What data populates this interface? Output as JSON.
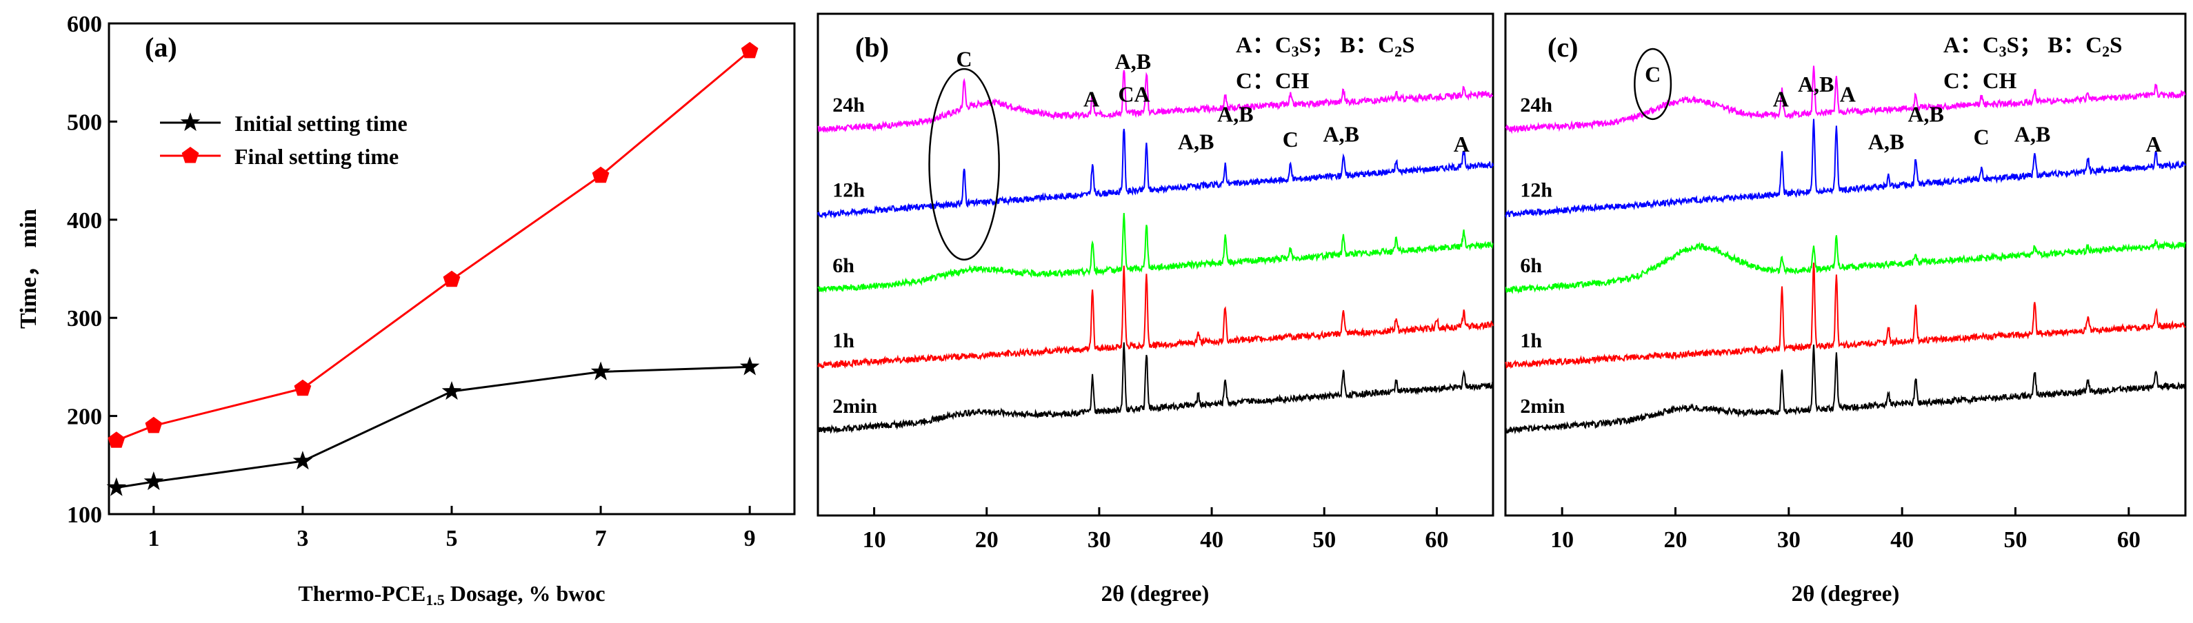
{
  "chart_data": [
    {
      "type": "line",
      "panel_label": "(a)",
      "xlabel_parts": [
        "Thermo-PCE",
        "1.5",
        " Dosage, % bwoc"
      ],
      "ylabel": "Time，  min",
      "xlim": [
        0.4,
        9.6
      ],
      "ylim": [
        100,
        600
      ],
      "x_ticks": [
        "1",
        "3",
        "5",
        "7",
        "9"
      ],
      "y_ticks": [
        "100",
        "200",
        "300",
        "400",
        "500",
        "600"
      ],
      "x_tick_values": [
        1,
        3,
        5,
        7,
        9
      ],
      "y_tick_values": [
        100,
        200,
        300,
        400,
        500,
        600
      ],
      "legend_position": "upper-left",
      "series": [
        {
          "name": "Initial setting time",
          "color": "#000000",
          "marker": "star",
          "x": [
            0.5,
            1,
            3,
            5,
            7,
            9
          ],
          "values": [
            127,
            133,
            154,
            225,
            245,
            250
          ]
        },
        {
          "name": "Final setting time",
          "color": "#ff0000",
          "marker": "pentagon",
          "x": [
            0.5,
            1,
            3,
            5,
            7,
            9
          ],
          "values": [
            175,
            190,
            228,
            339,
            445,
            572
          ]
        }
      ]
    },
    {
      "type": "line",
      "panel_label": "(b)",
      "xlabel": "2θ (degree)",
      "xlim": [
        5,
        65
      ],
      "x_ticks": [
        "10",
        "20",
        "30",
        "40",
        "50",
        "60"
      ],
      "x_tick_values": [
        10,
        20,
        30,
        40,
        50,
        60
      ],
      "legend_line1": [
        "A：C",
        "3",
        "S； B：C",
        "2",
        "S"
      ],
      "legend_line2": "C：CH",
      "series": [
        {
          "name": "24h",
          "color": "#ff00ff",
          "baseline_start": 0.77,
          "baseline_end": 0.84,
          "hump_center": 20,
          "hump_height": 0.035,
          "peaks": [
            [
              18.0,
              0.06
            ],
            [
              29.4,
              0.04
            ],
            [
              32.2,
              0.09
            ],
            [
              34.2,
              0.08
            ],
            [
              41.2,
              0.025
            ],
            [
              47.0,
              0.02
            ],
            [
              51.7,
              0.025
            ],
            [
              56.4,
              0.012
            ],
            [
              62.4,
              0.015
            ]
          ]
        },
        {
          "name": "12h",
          "color": "#0000ff",
          "baseline_start": 0.6,
          "baseline_end": 0.7,
          "hump_center": 18,
          "hump_height": 0.0,
          "peaks": [
            [
              18.0,
              0.07
            ],
            [
              29.4,
              0.06
            ],
            [
              32.2,
              0.13
            ],
            [
              34.2,
              0.09
            ],
            [
              41.2,
              0.04
            ],
            [
              47.0,
              0.03
            ],
            [
              51.7,
              0.04
            ],
            [
              56.4,
              0.02
            ],
            [
              62.4,
              0.03
            ]
          ]
        },
        {
          "name": "6h",
          "color": "#00ff00",
          "baseline_start": 0.45,
          "baseline_end": 0.54,
          "hump_center": 19,
          "hump_height": 0.02,
          "peaks": [
            [
              29.4,
              0.06
            ],
            [
              32.2,
              0.11
            ],
            [
              34.2,
              0.09
            ],
            [
              41.2,
              0.05
            ],
            [
              47.0,
              0.02
            ],
            [
              51.7,
              0.04
            ],
            [
              56.4,
              0.025
            ],
            [
              62.4,
              0.03
            ]
          ]
        },
        {
          "name": "1h",
          "color": "#ff0000",
          "baseline_start": 0.3,
          "baseline_end": 0.38,
          "hump_center": 18,
          "hump_height": 0.0,
          "peaks": [
            [
              29.4,
              0.12
            ],
            [
              32.2,
              0.16
            ],
            [
              34.2,
              0.14
            ],
            [
              38.8,
              0.02
            ],
            [
              41.2,
              0.07
            ],
            [
              51.7,
              0.05
            ],
            [
              56.4,
              0.025
            ],
            [
              60.0,
              0.02
            ],
            [
              62.4,
              0.03
            ]
          ]
        },
        {
          "name": "2min",
          "color": "#000000",
          "baseline_start": 0.17,
          "baseline_end": 0.26,
          "hump_center": 19,
          "hump_height": 0.015,
          "peaks": [
            [
              29.4,
              0.07
            ],
            [
              32.2,
              0.13
            ],
            [
              34.2,
              0.11
            ],
            [
              38.8,
              0.02
            ],
            [
              41.2,
              0.05
            ],
            [
              51.7,
              0.05
            ],
            [
              56.4,
              0.025
            ],
            [
              62.4,
              0.03
            ]
          ]
        }
      ],
      "annotations": [
        {
          "text": "C",
          "x": 18.0,
          "y": 0.895
        },
        {
          "text": "A",
          "x": 29.3,
          "y": 0.815
        },
        {
          "text": "A,B",
          "x": 33.0,
          "y": 0.89
        },
        {
          "text": "CA",
          "x": 33.1,
          "y": 0.825
        },
        {
          "text": "A,B",
          "x": 38.6,
          "y": 0.73
        },
        {
          "text": "A,B",
          "x": 42.1,
          "y": 0.785
        },
        {
          "text": "C",
          "x": 47.0,
          "y": 0.735
        },
        {
          "text": "A,B",
          "x": 51.5,
          "y": 0.745
        },
        {
          "text": "A",
          "x": 62.2,
          "y": 0.725
        }
      ],
      "ellipse": {
        "cx": 18.0,
        "cy": 0.7,
        "rx": 3.1,
        "ry": 0.19
      }
    },
    {
      "type": "line",
      "panel_label": "(c)",
      "xlabel": "2θ (degree)",
      "xlim": [
        5,
        65
      ],
      "x_ticks": [
        "10",
        "20",
        "30",
        "40",
        "50",
        "60"
      ],
      "x_tick_values": [
        10,
        20,
        30,
        40,
        50,
        60
      ],
      "legend_line1": [
        "A：C",
        "3",
        "S； B：C",
        "2",
        "S"
      ],
      "legend_line2": "C：CH",
      "series": [
        {
          "name": "24h",
          "color": "#ff00ff",
          "baseline_start": 0.77,
          "baseline_end": 0.84,
          "hump_center": 21,
          "hump_height": 0.04,
          "peaks": [
            [
              29.4,
              0.05
            ],
            [
              32.2,
              0.09
            ],
            [
              34.2,
              0.07
            ],
            [
              41.2,
              0.03
            ],
            [
              47.0,
              0.02
            ],
            [
              51.7,
              0.025
            ],
            [
              56.4,
              0.015
            ],
            [
              62.4,
              0.02
            ]
          ]
        },
        {
          "name": "12h",
          "color": "#0000ff",
          "baseline_start": 0.6,
          "baseline_end": 0.7,
          "hump_center": 18,
          "hump_height": 0.0,
          "peaks": [
            [
              29.4,
              0.08
            ],
            [
              32.2,
              0.14
            ],
            [
              34.2,
              0.13
            ],
            [
              38.8,
              0.02
            ],
            [
              41.2,
              0.05
            ],
            [
              47.0,
              0.02
            ],
            [
              51.7,
              0.05
            ],
            [
              56.4,
              0.025
            ],
            [
              62.4,
              0.03
            ]
          ]
        },
        {
          "name": "6h",
          "color": "#00ff00",
          "baseline_start": 0.45,
          "baseline_end": 0.54,
          "hump_center": 22,
          "hump_height": 0.06,
          "peaks": [
            [
              29.4,
              0.025
            ],
            [
              32.2,
              0.05
            ],
            [
              34.2,
              0.06
            ],
            [
              41.2,
              0.015
            ],
            [
              51.7,
              0.015
            ],
            [
              56.4,
              0.01
            ],
            [
              62.4,
              0.01
            ]
          ]
        },
        {
          "name": "1h",
          "color": "#ff0000",
          "baseline_start": 0.3,
          "baseline_end": 0.38,
          "hump_center": 18,
          "hump_height": 0.0,
          "peaks": [
            [
              29.4,
              0.12
            ],
            [
              32.2,
              0.17
            ],
            [
              34.2,
              0.14
            ],
            [
              38.8,
              0.03
            ],
            [
              41.2,
              0.07
            ],
            [
              51.7,
              0.06
            ],
            [
              56.4,
              0.03
            ],
            [
              62.4,
              0.035
            ]
          ]
        },
        {
          "name": "2min",
          "color": "#000000",
          "baseline_start": 0.17,
          "baseline_end": 0.26,
          "hump_center": 21,
          "hump_height": 0.02,
          "peaks": [
            [
              29.4,
              0.08
            ],
            [
              32.2,
              0.13
            ],
            [
              34.2,
              0.11
            ],
            [
              38.8,
              0.02
            ],
            [
              41.2,
              0.05
            ],
            [
              51.7,
              0.05
            ],
            [
              56.4,
              0.025
            ],
            [
              62.4,
              0.03
            ]
          ]
        }
      ],
      "annotations": [
        {
          "text": "C",
          "x": 18.0,
          "y": 0.865
        },
        {
          "text": "A",
          "x": 29.3,
          "y": 0.815
        },
        {
          "text": "A,B",
          "x": 32.4,
          "y": 0.845
        },
        {
          "text": "A",
          "x": 35.2,
          "y": 0.825
        },
        {
          "text": "A,B",
          "x": 38.6,
          "y": 0.73
        },
        {
          "text": "A,B",
          "x": 42.1,
          "y": 0.785
        },
        {
          "text": "C",
          "x": 47.0,
          "y": 0.74
        },
        {
          "text": "A,B",
          "x": 51.5,
          "y": 0.745
        },
        {
          "text": "A",
          "x": 62.2,
          "y": 0.725
        }
      ],
      "ellipse": {
        "cx": 18.0,
        "cy": 0.86,
        "rx": 1.6,
        "ry": 0.07
      }
    }
  ]
}
